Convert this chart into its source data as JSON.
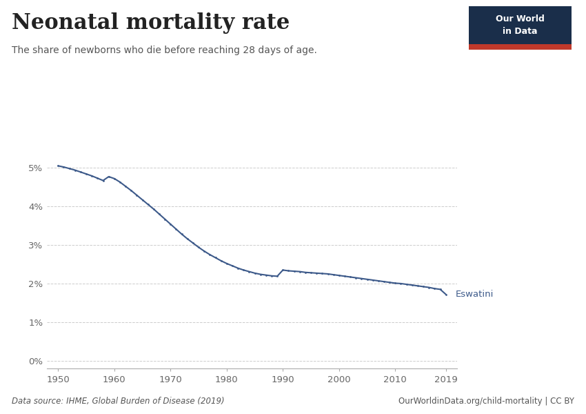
{
  "title": "Neonatal mortality rate",
  "subtitle": "The share of newborns who die before reaching 28 days of age.",
  "line_color": "#3d5a8a",
  "label": "Eswatini",
  "data_source": "Data source: IHME, Global Burden of Disease (2019)",
  "url": "OurWorldinData.org/child-mortality | CC BY",
  "yticks": [
    0,
    1,
    2,
    3,
    4,
    5
  ],
  "ytick_labels": [
    "0%",
    "1%",
    "2%",
    "3%",
    "4%",
    "5%"
  ],
  "xticks": [
    1950,
    1960,
    1970,
    1980,
    1990,
    2000,
    2010,
    2019
  ],
  "years": [
    1950,
    1951,
    1952,
    1953,
    1954,
    1955,
    1956,
    1957,
    1958,
    1959,
    1960,
    1961,
    1962,
    1963,
    1964,
    1965,
    1966,
    1967,
    1968,
    1969,
    1970,
    1971,
    1972,
    1973,
    1974,
    1975,
    1976,
    1977,
    1978,
    1979,
    1980,
    1981,
    1982,
    1983,
    1984,
    1985,
    1986,
    1987,
    1988,
    1989,
    1990,
    1991,
    1992,
    1993,
    1994,
    1995,
    1996,
    1997,
    1998,
    1999,
    2000,
    2001,
    2002,
    2003,
    2004,
    2005,
    2006,
    2007,
    2008,
    2009,
    2010,
    2011,
    2012,
    2013,
    2014,
    2015,
    2016,
    2017,
    2018,
    2019
  ],
  "values": [
    5.05,
    5.02,
    4.98,
    4.94,
    4.89,
    4.84,
    4.79,
    4.73,
    4.67,
    4.77,
    4.72,
    4.63,
    4.52,
    4.41,
    4.29,
    4.17,
    4.05,
    3.93,
    3.8,
    3.67,
    3.54,
    3.41,
    3.28,
    3.16,
    3.05,
    2.94,
    2.84,
    2.75,
    2.67,
    2.59,
    2.52,
    2.46,
    2.4,
    2.35,
    2.31,
    2.27,
    2.24,
    2.22,
    2.2,
    2.19,
    2.35,
    2.33,
    2.32,
    2.31,
    2.29,
    2.28,
    2.27,
    2.26,
    2.25,
    2.23,
    2.21,
    2.19,
    2.17,
    2.15,
    2.13,
    2.11,
    2.09,
    2.07,
    2.05,
    2.03,
    2.01,
    2.0,
    1.98,
    1.96,
    1.94,
    1.92,
    1.9,
    1.87,
    1.85,
    1.72
  ],
  "background_color": "#ffffff",
  "grid_color": "#cccccc",
  "owid_box_color": "#1a2e4a",
  "owid_red": "#c0392b",
  "figsize": [
    8.5,
    6.0
  ],
  "dpi": 100
}
